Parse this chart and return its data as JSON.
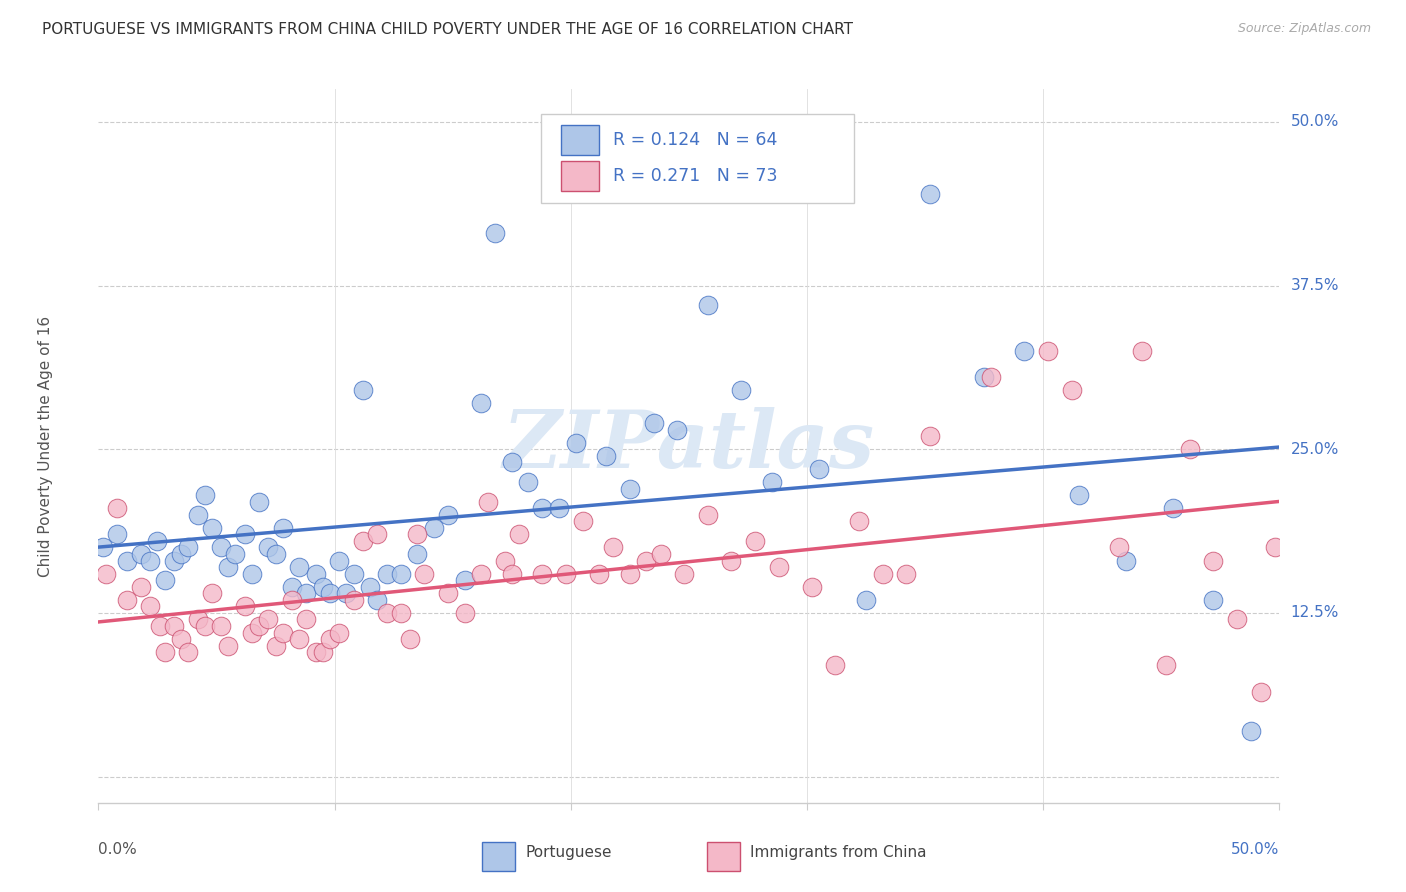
{
  "title": "PORTUGUESE VS IMMIGRANTS FROM CHINA CHILD POVERTY UNDER THE AGE OF 16 CORRELATION CHART",
  "source": "Source: ZipAtlas.com",
  "ylabel": "Child Poverty Under the Age of 16",
  "ytick_values": [
    0.0,
    0.125,
    0.25,
    0.375,
    0.5
  ],
  "ytick_labels": [
    "",
    "12.5%",
    "25.0%",
    "37.5%",
    "50.0%"
  ],
  "xlim": [
    0.0,
    0.5
  ],
  "ylim": [
    -0.02,
    0.525
  ],
  "portuguese_color": "#aec6e8",
  "chinese_color": "#f4b8c8",
  "line_portuguese_color": "#4472c4",
  "line_chinese_color": "#e05878",
  "portuguese_label": "Portuguese",
  "chinese_label": "Immigrants from China",
  "legend_line1": "R = 0.124   N = 64",
  "legend_line2": "R = 0.271   N = 73",
  "portuguese_x": [
    0.002,
    0.008,
    0.012,
    0.018,
    0.022,
    0.025,
    0.028,
    0.032,
    0.035,
    0.038,
    0.042,
    0.045,
    0.048,
    0.052,
    0.055,
    0.058,
    0.062,
    0.065,
    0.068,
    0.072,
    0.075,
    0.078,
    0.082,
    0.085,
    0.088,
    0.092,
    0.095,
    0.098,
    0.102,
    0.105,
    0.108,
    0.112,
    0.115,
    0.118,
    0.122,
    0.128,
    0.135,
    0.142,
    0.148,
    0.155,
    0.162,
    0.168,
    0.175,
    0.182,
    0.188,
    0.195,
    0.202,
    0.215,
    0.225,
    0.235,
    0.245,
    0.258,
    0.272,
    0.285,
    0.305,
    0.325,
    0.352,
    0.375,
    0.392,
    0.415,
    0.435,
    0.455,
    0.472,
    0.488
  ],
  "portuguese_y": [
    0.175,
    0.185,
    0.165,
    0.17,
    0.165,
    0.18,
    0.15,
    0.165,
    0.17,
    0.175,
    0.2,
    0.215,
    0.19,
    0.175,
    0.16,
    0.17,
    0.185,
    0.155,
    0.21,
    0.175,
    0.17,
    0.19,
    0.145,
    0.16,
    0.14,
    0.155,
    0.145,
    0.14,
    0.165,
    0.14,
    0.155,
    0.295,
    0.145,
    0.135,
    0.155,
    0.155,
    0.17,
    0.19,
    0.2,
    0.15,
    0.285,
    0.415,
    0.24,
    0.225,
    0.205,
    0.205,
    0.255,
    0.245,
    0.22,
    0.27,
    0.265,
    0.36,
    0.295,
    0.225,
    0.235,
    0.135,
    0.445,
    0.305,
    0.325,
    0.215,
    0.165,
    0.205,
    0.135,
    0.035
  ],
  "chinese_x": [
    0.003,
    0.008,
    0.012,
    0.018,
    0.022,
    0.026,
    0.028,
    0.032,
    0.035,
    0.038,
    0.042,
    0.045,
    0.048,
    0.052,
    0.055,
    0.062,
    0.065,
    0.068,
    0.072,
    0.075,
    0.078,
    0.082,
    0.085,
    0.088,
    0.092,
    0.095,
    0.098,
    0.102,
    0.108,
    0.112,
    0.118,
    0.122,
    0.128,
    0.132,
    0.135,
    0.138,
    0.148,
    0.155,
    0.162,
    0.165,
    0.172,
    0.175,
    0.178,
    0.188,
    0.198,
    0.205,
    0.212,
    0.218,
    0.225,
    0.232,
    0.238,
    0.248,
    0.258,
    0.268,
    0.278,
    0.288,
    0.302,
    0.312,
    0.322,
    0.332,
    0.342,
    0.352,
    0.378,
    0.402,
    0.412,
    0.432,
    0.442,
    0.452,
    0.462,
    0.472,
    0.482,
    0.492,
    0.498
  ],
  "chinese_y": [
    0.155,
    0.205,
    0.135,
    0.145,
    0.13,
    0.115,
    0.095,
    0.115,
    0.105,
    0.095,
    0.12,
    0.115,
    0.14,
    0.115,
    0.1,
    0.13,
    0.11,
    0.115,
    0.12,
    0.1,
    0.11,
    0.135,
    0.105,
    0.12,
    0.095,
    0.095,
    0.105,
    0.11,
    0.135,
    0.18,
    0.185,
    0.125,
    0.125,
    0.105,
    0.185,
    0.155,
    0.14,
    0.125,
    0.155,
    0.21,
    0.165,
    0.155,
    0.185,
    0.155,
    0.155,
    0.195,
    0.155,
    0.175,
    0.155,
    0.165,
    0.17,
    0.155,
    0.2,
    0.165,
    0.18,
    0.16,
    0.145,
    0.085,
    0.195,
    0.155,
    0.155,
    0.26,
    0.305,
    0.325,
    0.295,
    0.175,
    0.325,
    0.085,
    0.25,
    0.165,
    0.12,
    0.065,
    0.175
  ]
}
